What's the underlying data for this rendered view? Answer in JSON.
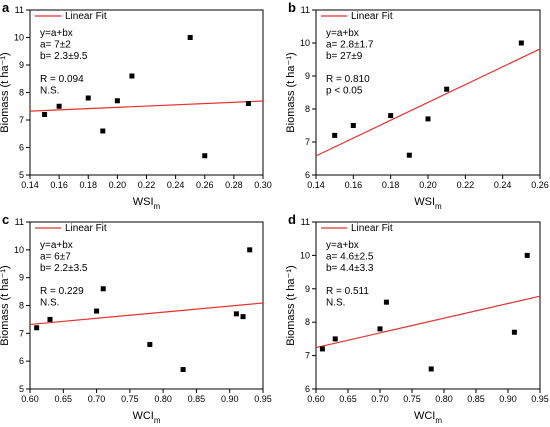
{
  "figure": {
    "fit_color": "#e8322e",
    "marker_color": "#000000"
  },
  "chart_data": [
    {
      "type": "scatter",
      "panel_label": "a",
      "xlabel_main": "WSI",
      "xlabel_sub": "m",
      "ylabel": "Biomass (t ha⁻¹)",
      "xlim": [
        0.14,
        0.3
      ],
      "ylim": [
        5,
        11
      ],
      "xticks": [
        0.14,
        0.16,
        0.18,
        0.2,
        0.22,
        0.24,
        0.26,
        0.28,
        0.3
      ],
      "xtick_labels": [
        "0.14",
        "0.16",
        "0.18",
        "0.20",
        "0.22",
        "0.24",
        "0.26",
        "0.28",
        "0.30"
      ],
      "yticks": [
        5,
        6,
        7,
        8,
        9,
        10,
        11
      ],
      "ytick_labels": [
        "5",
        "6",
        "7",
        "8",
        "9",
        "10",
        "11"
      ],
      "points": [
        {
          "x": 0.15,
          "y": 7.2
        },
        {
          "x": 0.16,
          "y": 7.5
        },
        {
          "x": 0.18,
          "y": 7.8
        },
        {
          "x": 0.19,
          "y": 6.6
        },
        {
          "x": 0.2,
          "y": 7.7
        },
        {
          "x": 0.21,
          "y": 8.6
        },
        {
          "x": 0.25,
          "y": 10.0
        },
        {
          "x": 0.26,
          "y": 5.7
        },
        {
          "x": 0.29,
          "y": 7.6
        }
      ],
      "fit": {
        "intercept": 7.0,
        "slope": 2.3,
        "x_range": [
          0.14,
          0.3
        ]
      },
      "legend": {
        "label": "Linear Fit",
        "placement": "top-left"
      },
      "annotations": [
        "y=a+bx",
        "a= 7±2",
        "b= 2.3±9.5",
        "",
        "R = 0.094",
        "N.S."
      ]
    },
    {
      "type": "scatter",
      "panel_label": "b",
      "xlabel_main": "WSI",
      "xlabel_sub": "m",
      "ylabel": "Biomass (t ha⁻¹)",
      "xlim": [
        0.14,
        0.26
      ],
      "ylim": [
        6,
        11
      ],
      "xticks": [
        0.14,
        0.16,
        0.18,
        0.2,
        0.22,
        0.24,
        0.26
      ],
      "xtick_labels": [
        "0.14",
        "0.16",
        "0.18",
        "0.20",
        "0.22",
        "0.24",
        "0.26"
      ],
      "yticks": [
        6,
        7,
        8,
        9,
        10,
        11
      ],
      "ytick_labels": [
        "6",
        "7",
        "8",
        "9",
        "10",
        "11"
      ],
      "points": [
        {
          "x": 0.15,
          "y": 7.2
        },
        {
          "x": 0.16,
          "y": 7.5
        },
        {
          "x": 0.18,
          "y": 7.8
        },
        {
          "x": 0.19,
          "y": 6.6
        },
        {
          "x": 0.2,
          "y": 7.7
        },
        {
          "x": 0.21,
          "y": 8.6
        },
        {
          "x": 0.25,
          "y": 10.0
        }
      ],
      "fit": {
        "intercept": 2.8,
        "slope": 27,
        "x_range": [
          0.14,
          0.26
        ]
      },
      "legend": {
        "label": "Linear Fit",
        "placement": "top-left"
      },
      "annotations": [
        "y=a+bx",
        "a=  2.8±1.7",
        "b=   27±9",
        "",
        "R = 0.810",
        "p < 0.05"
      ]
    },
    {
      "type": "scatter",
      "panel_label": "c",
      "xlabel_main": "WCI",
      "xlabel_sub": "m",
      "ylabel": "Biomass (t ha⁻¹)",
      "xlim": [
        0.6,
        0.95
      ],
      "ylim": [
        5,
        11
      ],
      "xticks": [
        0.6,
        0.65,
        0.7,
        0.75,
        0.8,
        0.85,
        0.9,
        0.95
      ],
      "xtick_labels": [
        "0.60",
        "0.65",
        "0.70",
        "0.75",
        "0.80",
        "0.85",
        "0.90",
        "0.95"
      ],
      "yticks": [
        5,
        6,
        7,
        8,
        9,
        10,
        11
      ],
      "ytick_labels": [
        "5",
        "6",
        "7",
        "8",
        "9",
        "10",
        "11"
      ],
      "points": [
        {
          "x": 0.61,
          "y": 7.2
        },
        {
          "x": 0.63,
          "y": 7.5
        },
        {
          "x": 0.7,
          "y": 7.8
        },
        {
          "x": 0.71,
          "y": 8.6
        },
        {
          "x": 0.78,
          "y": 6.6
        },
        {
          "x": 0.83,
          "y": 5.7
        },
        {
          "x": 0.91,
          "y": 7.7
        },
        {
          "x": 0.92,
          "y": 7.6
        },
        {
          "x": 0.93,
          "y": 10.0
        }
      ],
      "fit": {
        "intercept": 6.0,
        "slope": 2.2,
        "x_range": [
          0.6,
          0.95
        ]
      },
      "legend": {
        "label": "Linear Fit",
        "placement": "top-left"
      },
      "annotations": [
        "y=a+bx",
        "a= 6±7",
        "b= 2.2±3.5",
        "",
        "R = 0.229",
        "N.S."
      ]
    },
    {
      "type": "scatter",
      "panel_label": "d",
      "xlabel_main": "WCI",
      "xlabel_sub": "m",
      "ylabel": "Biomass (t ha⁻¹)",
      "xlim": [
        0.6,
        0.95
      ],
      "ylim": [
        6,
        11
      ],
      "xticks": [
        0.6,
        0.65,
        0.7,
        0.75,
        0.8,
        0.85,
        0.9,
        0.95
      ],
      "xtick_labels": [
        "0.60",
        "0.65",
        "0.70",
        "0.75",
        "0.80",
        "0.85",
        "0.90",
        "0.95"
      ],
      "yticks": [
        6,
        7,
        8,
        9,
        10,
        11
      ],
      "ytick_labels": [
        "6",
        "7",
        "8",
        "9",
        "10",
        "11"
      ],
      "points": [
        {
          "x": 0.61,
          "y": 7.2
        },
        {
          "x": 0.63,
          "y": 7.5
        },
        {
          "x": 0.7,
          "y": 7.8
        },
        {
          "x": 0.71,
          "y": 8.6
        },
        {
          "x": 0.78,
          "y": 6.6
        },
        {
          "x": 0.91,
          "y": 7.7
        },
        {
          "x": 0.93,
          "y": 10.0
        }
      ],
      "fit": {
        "intercept": 4.6,
        "slope": 4.4,
        "x_range": [
          0.6,
          0.95
        ]
      },
      "legend": {
        "label": "Linear Fit",
        "placement": "top-left"
      },
      "annotations": [
        "y=a+bx",
        "a=  4.6±2.5",
        "b=  4.4±3.3",
        "",
        "R = 0.511",
        "N.S."
      ]
    }
  ]
}
